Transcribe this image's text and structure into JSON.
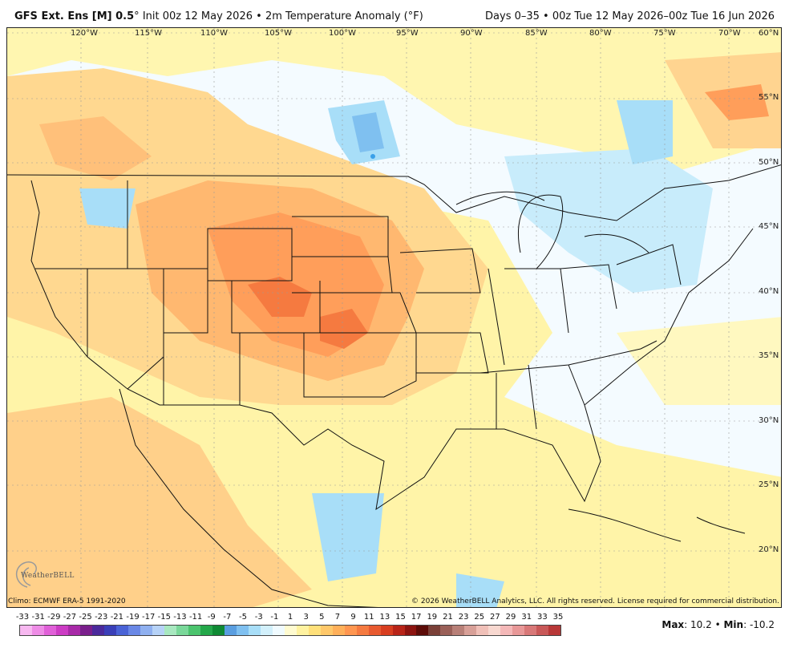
{
  "header": {
    "model": "GFS Ext.  Ens [M] 0.5",
    "degree": "°",
    "init": "Init 00z 12 May 2026",
    "variable": "2m Temperature Anomaly (°F)",
    "bullet": "•",
    "range": "Days 0–35 • 00z Tue 12 May 2026–00z Tue 16 Jun 2026"
  },
  "map": {
    "lon_labels": [
      "120°W",
      "115°W",
      "110°W",
      "105°W",
      "100°W",
      "95°W",
      "90°W",
      "85°W",
      "80°W",
      "75°W",
      "70°W"
    ],
    "lat_labels": [
      "60°N",
      "55°N",
      "50°N",
      "45°N",
      "40°N",
      "35°N",
      "30°N",
      "25°N",
      "20°N"
    ]
  },
  "footer": {
    "climo": "Climo: ECMWF ERA-5 1991-2020",
    "copyright": "© 2026 WeatherBELL Analytics, LLC. All rights reserved. License required for commercial distribution.",
    "logo": "WeatherBELL"
  },
  "legend": {
    "ticks": [
      "-33",
      "-31",
      "-29",
      "-27",
      "-25",
      "-23",
      "-21",
      "-19",
      "-17",
      "-15",
      "-13",
      "-11",
      "-9",
      "-7",
      "-5",
      "-3",
      "-1",
      "1",
      "3",
      "5",
      "7",
      "9",
      "11",
      "13",
      "15",
      "17",
      "19",
      "21",
      "23",
      "25",
      "27",
      "29",
      "31",
      "33",
      "35"
    ],
    "colors": [
      "#f7b8f0",
      "#ee8ce6",
      "#e060d8",
      "#cc3cc4",
      "#a82aa8",
      "#7a1f8c",
      "#4b2a9c",
      "#3a3fb8",
      "#4a63d6",
      "#6a88e6",
      "#8fb0f0",
      "#b6d2f7",
      "#a8e8c0",
      "#7ad89a",
      "#4cc46e",
      "#24a84a",
      "#0f8a34",
      "#5a9ee0",
      "#7fc0f0",
      "#a8def8",
      "#d2f0fb",
      "#f0fbff",
      "#fffbd0",
      "#fff2a0",
      "#ffe07a",
      "#ffc86a",
      "#ffb05a",
      "#ff9650",
      "#f57a40",
      "#e85a30",
      "#d83e20",
      "#b82418",
      "#8c1410",
      "#5c0c08",
      "#7a4038",
      "#9a6058",
      "#b88078",
      "#d8a098",
      "#f0c0b8",
      "#f8d8d0",
      "#f4b8b8",
      "#e89898",
      "#d87878",
      "#c85858",
      "#b83838"
    ],
    "max_label": "Max",
    "max_value": "10.2",
    "min_label": "Min",
    "min_value": "-10.2"
  }
}
